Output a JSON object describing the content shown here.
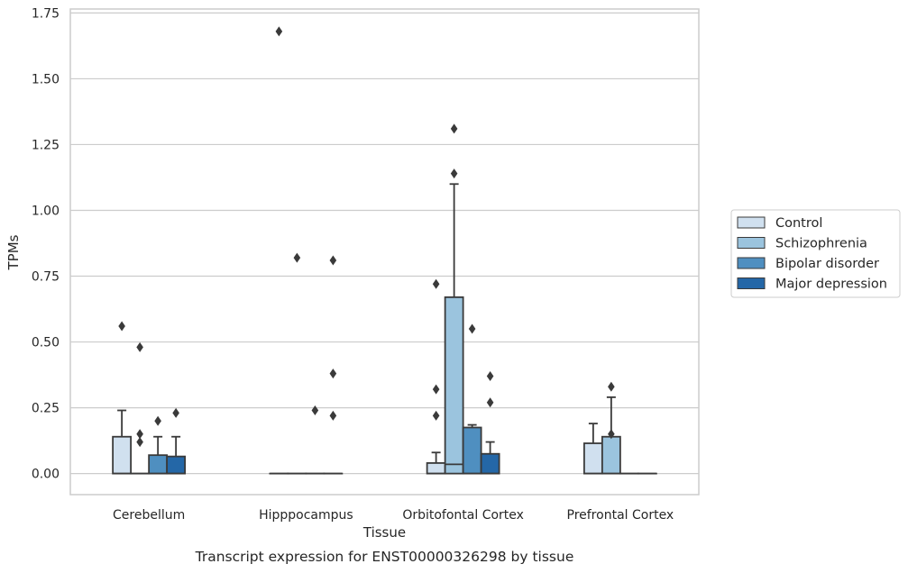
{
  "caption": "Transcript expression for ENST00000326298 by tissue",
  "chart_data": {
    "type": "box",
    "xlabel": "Tissue",
    "ylabel": "TPMs",
    "ylim": [
      -0.08,
      1.765
    ],
    "yticks": [
      "0.00",
      "0.25",
      "0.50",
      "0.75",
      "1.00",
      "1.25",
      "1.50",
      "1.75"
    ],
    "grid": "horizontal",
    "legend_position": "right",
    "categories": [
      "Cerebellum",
      "Hipppocampus",
      "Orbitofontal Cortex",
      "Prefrontal Cortex"
    ],
    "series": [
      {
        "name": "Control",
        "color": "#d0e0ef",
        "boxes": [
          {
            "min": 0.0,
            "q1": 0.0,
            "median": 0.0,
            "q3": 0.14,
            "max": 0.24,
            "outliers": [
              0.56
            ]
          },
          {
            "min": 0.0,
            "q1": 0.0,
            "median": 0.0,
            "q3": 0.0,
            "max": 0.0,
            "outliers": [
              1.68
            ]
          },
          {
            "min": 0.0,
            "q1": 0.0,
            "median": 0.0,
            "q3": 0.04,
            "max": 0.08,
            "outliers": [
              0.72,
              0.32,
              0.22
            ]
          },
          {
            "min": 0.0,
            "q1": 0.0,
            "median": 0.0,
            "q3": 0.115,
            "max": 0.19,
            "outliers": []
          }
        ]
      },
      {
        "name": "Schizophrenia",
        "color": "#9bc4de",
        "boxes": [
          {
            "min": 0.0,
            "q1": 0.0,
            "median": 0.0,
            "q3": 0.0,
            "max": 0.0,
            "outliers": [
              0.48,
              0.15,
              0.12
            ]
          },
          {
            "min": 0.0,
            "q1": 0.0,
            "median": 0.0,
            "q3": 0.0,
            "max": 0.0,
            "outliers": [
              0.82
            ]
          },
          {
            "min": 0.0,
            "q1": 0.0,
            "median": 0.035,
            "q3": 0.67,
            "max": 1.1,
            "outliers": [
              1.31,
              1.14
            ]
          },
          {
            "min": 0.0,
            "q1": 0.0,
            "median": 0.0,
            "q3": 0.14,
            "max": 0.29,
            "outliers": [
              0.33,
              0.15
            ]
          }
        ]
      },
      {
        "name": "Bipolar disorder",
        "color": "#4f8fc0",
        "boxes": [
          {
            "min": 0.0,
            "q1": 0.0,
            "median": 0.0,
            "q3": 0.07,
            "max": 0.14,
            "outliers": [
              0.2
            ]
          },
          {
            "min": 0.0,
            "q1": 0.0,
            "median": 0.0,
            "q3": 0.0,
            "max": 0.0,
            "outliers": [
              0.24
            ]
          },
          {
            "min": 0.0,
            "q1": 0.0,
            "median": 0.0,
            "q3": 0.175,
            "max": 0.185,
            "outliers": [
              0.55
            ]
          },
          {
            "min": 0.0,
            "q1": 0.0,
            "median": 0.0,
            "q3": 0.0,
            "max": 0.0,
            "outliers": []
          }
        ]
      },
      {
        "name": "Major depression",
        "color": "#2467a7",
        "boxes": [
          {
            "min": 0.0,
            "q1": 0.0,
            "median": 0.0,
            "q3": 0.065,
            "max": 0.14,
            "outliers": [
              0.23
            ]
          },
          {
            "min": 0.0,
            "q1": 0.0,
            "median": 0.0,
            "q3": 0.0,
            "max": 0.0,
            "outliers": [
              0.81,
              0.38,
              0.22
            ]
          },
          {
            "min": 0.0,
            "q1": 0.0,
            "median": 0.0,
            "q3": 0.075,
            "max": 0.12,
            "outliers": [
              0.37,
              0.27
            ]
          },
          {
            "min": 0.0,
            "q1": 0.0,
            "median": 0.0,
            "q3": 0.0,
            "max": 0.0,
            "outliers": []
          }
        ]
      }
    ]
  }
}
